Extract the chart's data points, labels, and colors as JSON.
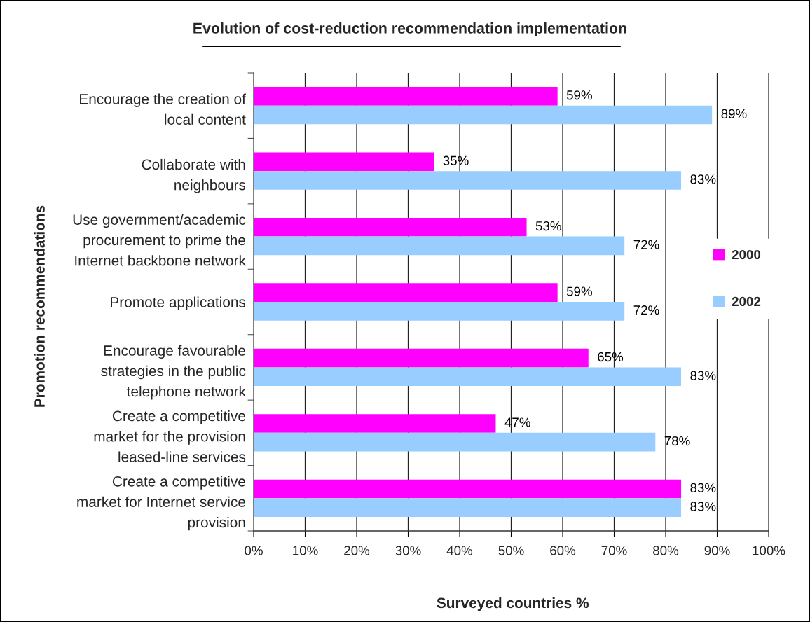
{
  "chart_data": {
    "type": "bar",
    "orientation": "horizontal",
    "title": "Evolution of cost-reduction recommendation implementation",
    "xlabel": "Surveyed countries %",
    "ylabel": "Promotion recommendations",
    "categories": [
      "Encourage the creation of\nlocal content",
      "Collaborate with\nneighbours",
      "Use government/academic\nprocurement to prime the\nInternet backbone network",
      "Promote applications",
      "Encourage favourable\nstrategies in the public\ntelephone network",
      "Create a competitive\nmarket for the provision\nleased-line services",
      "Create a competitive\nmarket for Internet service\nprovision"
    ],
    "series": [
      {
        "name": "2000",
        "color": "#ff00ff",
        "values": [
          59,
          35,
          53,
          59,
          65,
          47,
          83
        ],
        "value_labels": [
          "59%",
          "35%",
          "53%",
          "59%",
          "65%",
          "47%",
          "83%"
        ]
      },
      {
        "name": "2002",
        "color": "#99ccff",
        "values": [
          89,
          83,
          72,
          72,
          83,
          78,
          83
        ],
        "value_labels": [
          "89%",
          "83%",
          "72%",
          "72%",
          "83%",
          "78%",
          "83%"
        ]
      }
    ],
    "xlim": [
      0,
      100
    ],
    "xticks": [
      {
        "value": 0,
        "label": "0%"
      },
      {
        "value": 10,
        "label": "10%"
      },
      {
        "value": 20,
        "label": "20%"
      },
      {
        "value": 30,
        "label": "30%"
      },
      {
        "value": 40,
        "label": "40%"
      },
      {
        "value": 50,
        "label": "50%"
      },
      {
        "value": 60,
        "label": "60%"
      },
      {
        "value": 70,
        "label": "70%"
      },
      {
        "value": 80,
        "label": "80%"
      },
      {
        "value": 90,
        "label": "90%"
      },
      {
        "value": 100,
        "label": "100%"
      }
    ],
    "grid": "x",
    "legend": "right"
  }
}
